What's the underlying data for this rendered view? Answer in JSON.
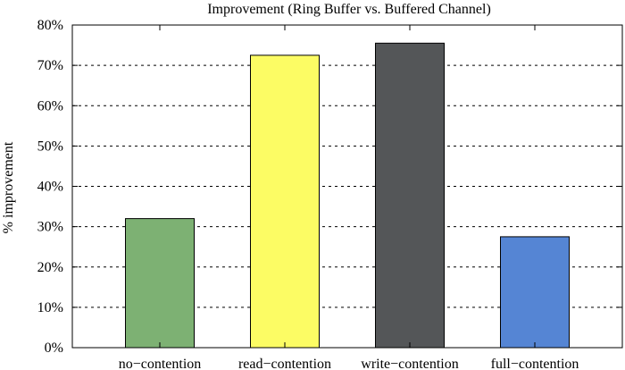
{
  "chart_data": {
    "type": "bar",
    "title": "Improvement (Ring Buffer vs. Buffered Channel)",
    "ylabel": "% improvement",
    "xlabel": "",
    "categories": [
      "no−contention",
      "read−contention",
      "write−contention",
      "full−contention"
    ],
    "values": [
      32,
      72.5,
      75.5,
      27.5
    ],
    "colors": [
      "#7db173",
      "#fcfc64",
      "#545658",
      "#5585d4"
    ],
    "ylim": [
      0,
      80
    ],
    "yticks": [
      0,
      10,
      20,
      30,
      40,
      50,
      60,
      70,
      80
    ],
    "ytick_labels": [
      "0%",
      "10%",
      "20%",
      "30%",
      "40%",
      "50%",
      "60%",
      "70%",
      "80%"
    ],
    "grid": true,
    "legend": "none"
  }
}
